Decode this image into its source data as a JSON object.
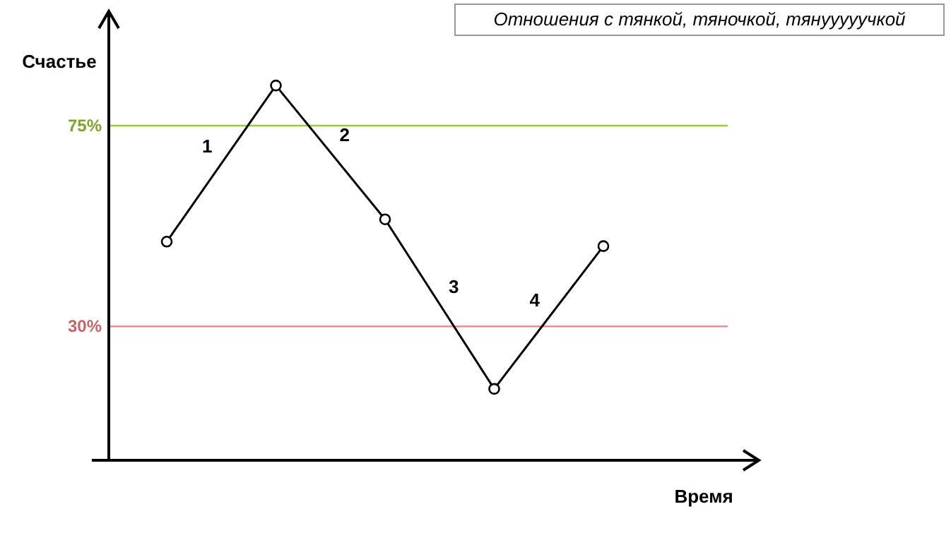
{
  "chart_data": {
    "type": "line",
    "title": "Отношения с тянкой, тяночкой, тянууууучкой",
    "xlabel": "Время",
    "ylabel": "Счастье",
    "categories": [
      null,
      null,
      null,
      null,
      null
    ],
    "ylim": [
      0,
      100
    ],
    "yticks": [
      {
        "value": 30,
        "label": "30%"
      },
      {
        "value": 75,
        "label": "75%"
      }
    ],
    "tick_labels": "y",
    "marker": "circle",
    "line_style": "solid",
    "series": [
      {
        "color": "#000000",
        "values": [
          49,
          84,
          54,
          16,
          48
        ]
      }
    ],
    "ref_lines": [
      {
        "axis": "y",
        "value": 75,
        "color": "#99cc33"
      },
      {
        "axis": "y",
        "value": 30,
        "color": "#f08080"
      }
    ],
    "annotations": [
      "1",
      "2",
      "3",
      "4"
    ]
  }
}
